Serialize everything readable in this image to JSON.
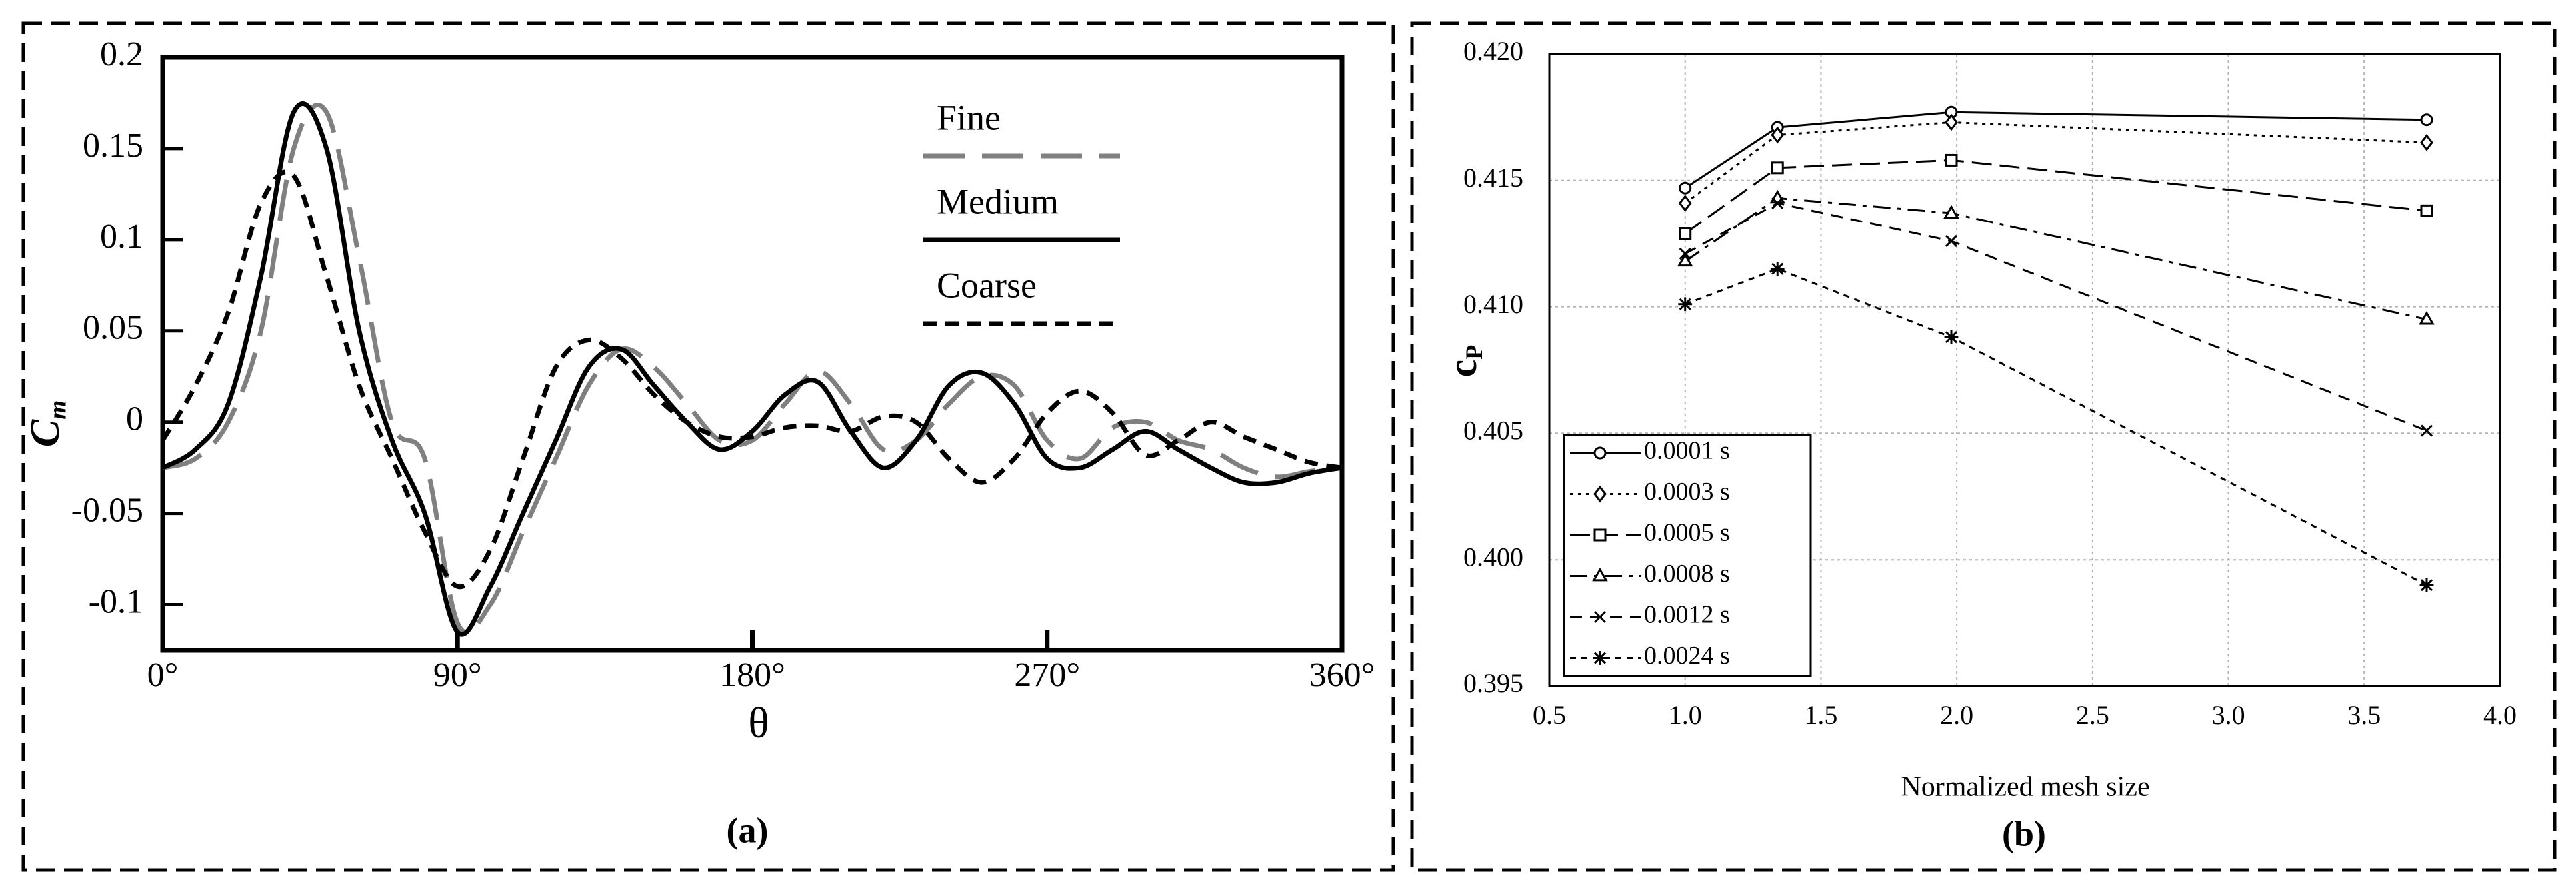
{
  "chart_data": [
    {
      "type": "line",
      "caption": "(a)",
      "x_label": "θ",
      "y_label": "C",
      "y_label_sub": "m",
      "smooth": true,
      "grid": false,
      "legend": "upper right",
      "xlim": [
        0,
        360
      ],
      "ylim": [
        -0.125,
        0.2
      ],
      "xticks": [
        {
          "value": 0,
          "label": "0°"
        },
        {
          "value": 90,
          "label": "90°"
        },
        {
          "value": 180,
          "label": "180°"
        },
        {
          "value": 270,
          "label": "270°"
        },
        {
          "value": 360,
          "label": "360°"
        }
      ],
      "yticks": [
        -0.1,
        -0.05,
        0,
        0.05,
        0.1,
        0.15,
        0.2
      ],
      "x": [
        0,
        10,
        20,
        30,
        40,
        50,
        60,
        70,
        80,
        90,
        100,
        110,
        120,
        130,
        140,
        150,
        160,
        170,
        180,
        190,
        200,
        210,
        220,
        230,
        240,
        250,
        260,
        270,
        280,
        290,
        300,
        310,
        320,
        330,
        340,
        350,
        360
      ],
      "series": [
        {
          "name": "Fine",
          "color": "#808080",
          "line_style": "longdash",
          "values": [
            -0.025,
            -0.02,
            0.0,
            0.05,
            0.15,
            0.17,
            0.09,
            0.0,
            -0.02,
            -0.11,
            -0.1,
            -0.06,
            -0.02,
            0.02,
            0.04,
            0.03,
            0.01,
            -0.01,
            -0.01,
            0.01,
            0.028,
            0.01,
            -0.015,
            -0.01,
            0.01,
            0.025,
            0.02,
            -0.01,
            -0.02,
            -0.003,
            0.0,
            -0.01,
            -0.015,
            -0.025,
            -0.03,
            -0.027,
            -0.025
          ]
        },
        {
          "name": "Medium",
          "color": "#000000",
          "line_style": "solid",
          "values": [
            -0.025,
            -0.015,
            0.01,
            0.08,
            0.17,
            0.15,
            0.05,
            -0.01,
            -0.05,
            -0.115,
            -0.09,
            -0.05,
            -0.01,
            0.03,
            0.04,
            0.02,
            0.0,
            -0.015,
            -0.005,
            0.015,
            0.022,
            -0.005,
            -0.025,
            -0.01,
            0.02,
            0.027,
            0.01,
            -0.02,
            -0.025,
            -0.015,
            -0.005,
            -0.015,
            -0.025,
            -0.033,
            -0.033,
            -0.028,
            -0.025
          ]
        },
        {
          "name": "Coarse",
          "color": "#000000",
          "line_style": "dashed",
          "values": [
            -0.01,
            0.02,
            0.06,
            0.12,
            0.135,
            0.08,
            0.02,
            -0.02,
            -0.06,
            -0.09,
            -0.07,
            -0.02,
            0.03,
            0.045,
            0.035,
            0.015,
            0.0,
            -0.008,
            -0.008,
            -0.003,
            -0.002,
            -0.005,
            0.003,
            0.0,
            -0.02,
            -0.033,
            -0.02,
            0.005,
            0.017,
            0.005,
            -0.018,
            -0.01,
            0.0,
            -0.008,
            -0.015,
            -0.022,
            -0.025
          ]
        }
      ]
    },
    {
      "type": "line",
      "caption": "(b)",
      "x_label": "Normalized mesh size",
      "y_label": "c",
      "y_label_sub": "P",
      "smooth": false,
      "grid": true,
      "legend": "lower left",
      "xlim": [
        0.5,
        4.0
      ],
      "ylim": [
        0.395,
        0.42
      ],
      "xticks": [
        0.5,
        {
          "value": 1,
          "label": "1.0"
        },
        1.5,
        {
          "value": 2,
          "label": "2.0"
        },
        2.5,
        {
          "value": 3,
          "label": "3.0"
        },
        3.5,
        {
          "value": 4,
          "label": "4.0"
        }
      ],
      "yticks": [
        0.395,
        {
          "value": 0.4,
          "label": "0.400"
        },
        0.405,
        {
          "value": 0.41,
          "label": "0.410"
        },
        0.415,
        {
          "value": 0.42,
          "label": "0.420"
        }
      ],
      "x": [
        1.0,
        1.34,
        1.98,
        3.73
      ],
      "series": [
        {
          "name": "0.0001 s",
          "color": "#000000",
          "marker": "circle",
          "line_style": "solid",
          "values": [
            0.4147,
            0.4171,
            0.4177,
            0.4174
          ]
        },
        {
          "name": "0.0003 s",
          "color": "#000000",
          "marker": "diamond",
          "line_style": "dotted",
          "values": [
            0.4141,
            0.4168,
            0.4173,
            0.4165
          ]
        },
        {
          "name": "0.0005 s",
          "color": "#000000",
          "marker": "square",
          "line_style": "longdash",
          "values": [
            0.4129,
            0.4155,
            0.4158,
            0.4138
          ]
        },
        {
          "name": "0.0008 s",
          "color": "#000000",
          "marker": "triangle",
          "line_style": "dashdot",
          "values": [
            0.4118,
            0.4143,
            0.4137,
            0.4095
          ]
        },
        {
          "name": "0.0012 s",
          "color": "#000000",
          "marker": "x",
          "line_style": "dashed",
          "values": [
            0.4121,
            0.4141,
            0.4126,
            0.4051
          ]
        },
        {
          "name": "0.0024 s",
          "color": "#000000",
          "marker": "asterisk",
          "line_style": "shortdash",
          "values": [
            0.4101,
            0.4115,
            0.4088,
            0.399
          ]
        }
      ]
    }
  ]
}
